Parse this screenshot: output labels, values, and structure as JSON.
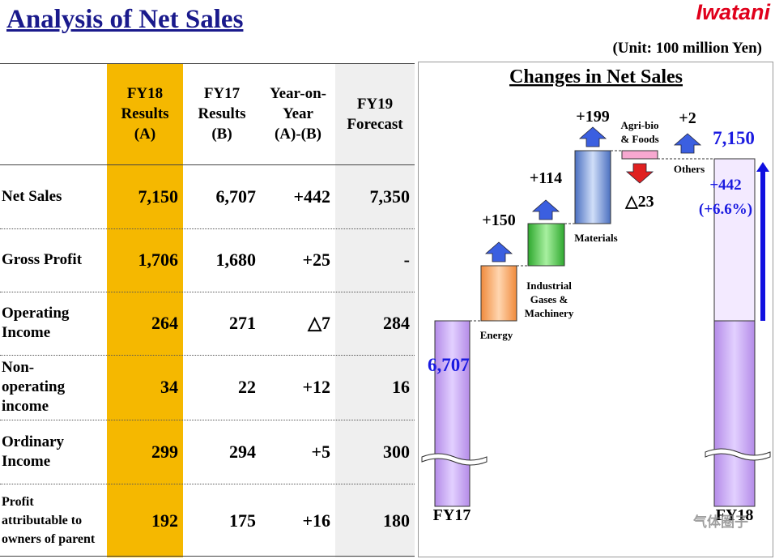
{
  "header": {
    "title": "Analysis of  Net Sales",
    "logo": "Iwatani",
    "unit": "(Unit: 100 million Yen)"
  },
  "table": {
    "columns": [
      [
        "FY18",
        "Results",
        "(A)"
      ],
      [
        "FY17",
        "Results",
        "(B)"
      ],
      [
        "Year-on-",
        "Year",
        "(A)-(B)"
      ],
      [
        "FY19",
        "Forecast"
      ]
    ],
    "rows": [
      {
        "label": "Net Sales",
        "values": [
          "7,150",
          "6,707",
          "+442",
          "7,350"
        ]
      },
      {
        "label": "Gross Profit",
        "values": [
          "1,706",
          "1,680",
          "+25",
          "-"
        ]
      },
      {
        "label": "Operating Income",
        "values": [
          "264",
          "271",
          "△7",
          "284"
        ]
      },
      {
        "label": "Non-operating income",
        "values": [
          "34",
          "22",
          "+12",
          "16"
        ]
      },
      {
        "label": "Ordinary Income",
        "values": [
          "299",
          "294",
          "+5",
          "300"
        ]
      },
      {
        "label": "Profit attributable to owners of parent",
        "values": [
          "192",
          "175",
          "+16",
          "180"
        ]
      }
    ]
  },
  "waterfall": {
    "title": "Changes in Net Sales",
    "start": {
      "label": "FY17",
      "value": "6,707"
    },
    "steps": [
      {
        "name": [
          "Energy"
        ],
        "change": "+150"
      },
      {
        "name": [
          "Industrial",
          "Gases &",
          "Machinery"
        ],
        "change": "+114"
      },
      {
        "name": [
          "Materials"
        ],
        "change": "+199"
      },
      {
        "name": [
          "Agri-bio",
          "& Foods"
        ],
        "change": "△23"
      },
      {
        "name": [
          "Others"
        ],
        "change": "+2"
      }
    ],
    "end": {
      "label": "FY18",
      "value": "7,150"
    },
    "total_change": "+442",
    "total_pct": "(+6.6%)"
  },
  "watermark": "气体圈子"
}
